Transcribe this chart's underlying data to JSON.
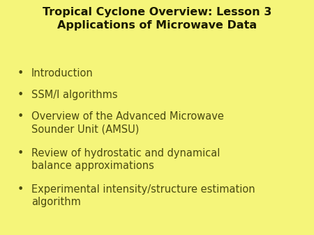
{
  "title_line1": "Tropical Cyclone Overview: Lesson 3",
  "title_line2": "Applications of Microwave Data",
  "background_color": "#f5f57a",
  "title_color": "#1a1a00",
  "text_color": "#4a4a10",
  "bullet_items": [
    "Introduction",
    "SSM/I algorithms",
    "Overview of the Advanced Microwave\nSounder Unit (AMSU)",
    "Review of hydrostatic and dynamical\nbalance approximations",
    "Experimental intensity/structure estimation\nalgorithm"
  ],
  "title_fontsize": 11.5,
  "bullet_fontsize": 10.5
}
